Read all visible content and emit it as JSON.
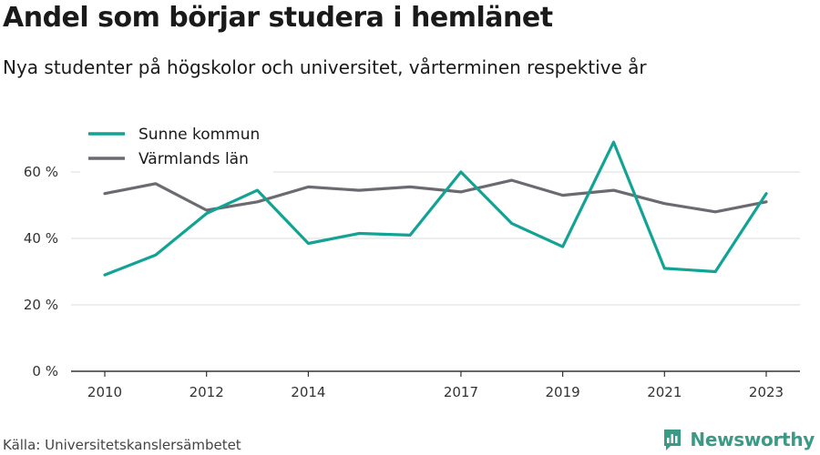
{
  "header": {
    "title": "Andel som börjar studera i hemlänet",
    "subtitle": "Nya studenter på högskolor och universitet, vårterminen respektive år"
  },
  "footer": {
    "source": "Källa: Universitetskanslersämbetet",
    "brand": "Newsworthy"
  },
  "chart_data": {
    "type": "line",
    "title": "Andel som börjar studera i hemlänet",
    "subtitle": "Nya studenter på högskolor och universitet, vårterminen respektive år",
    "x": [
      2010,
      2011,
      2012,
      2013,
      2014,
      2015,
      2016,
      2017,
      2018,
      2019,
      2020,
      2021,
      2022,
      2023
    ],
    "x_ticks": [
      2010,
      2012,
      2014,
      2017,
      2019,
      2021,
      2023
    ],
    "y_ticks": [
      0,
      20,
      40,
      60
    ],
    "y_tick_labels": [
      "0 %",
      "20 %",
      "40 %",
      "60 %"
    ],
    "ylim": [
      0,
      70
    ],
    "grid": true,
    "legend_position": "top-left",
    "series": [
      {
        "name": "Sunne kommun",
        "color": "#13a394",
        "values": [
          29,
          35,
          47.5,
          54.5,
          38.5,
          41.5,
          41,
          60,
          44.5,
          37.5,
          69,
          31,
          30,
          53.5
        ]
      },
      {
        "name": "Värmlands län",
        "color": "#6b6a70",
        "values": [
          53.5,
          56.5,
          48.5,
          51,
          55.5,
          54.5,
          55.5,
          54,
          57.5,
          53,
          54.5,
          50.5,
          48,
          51
        ]
      }
    ]
  }
}
